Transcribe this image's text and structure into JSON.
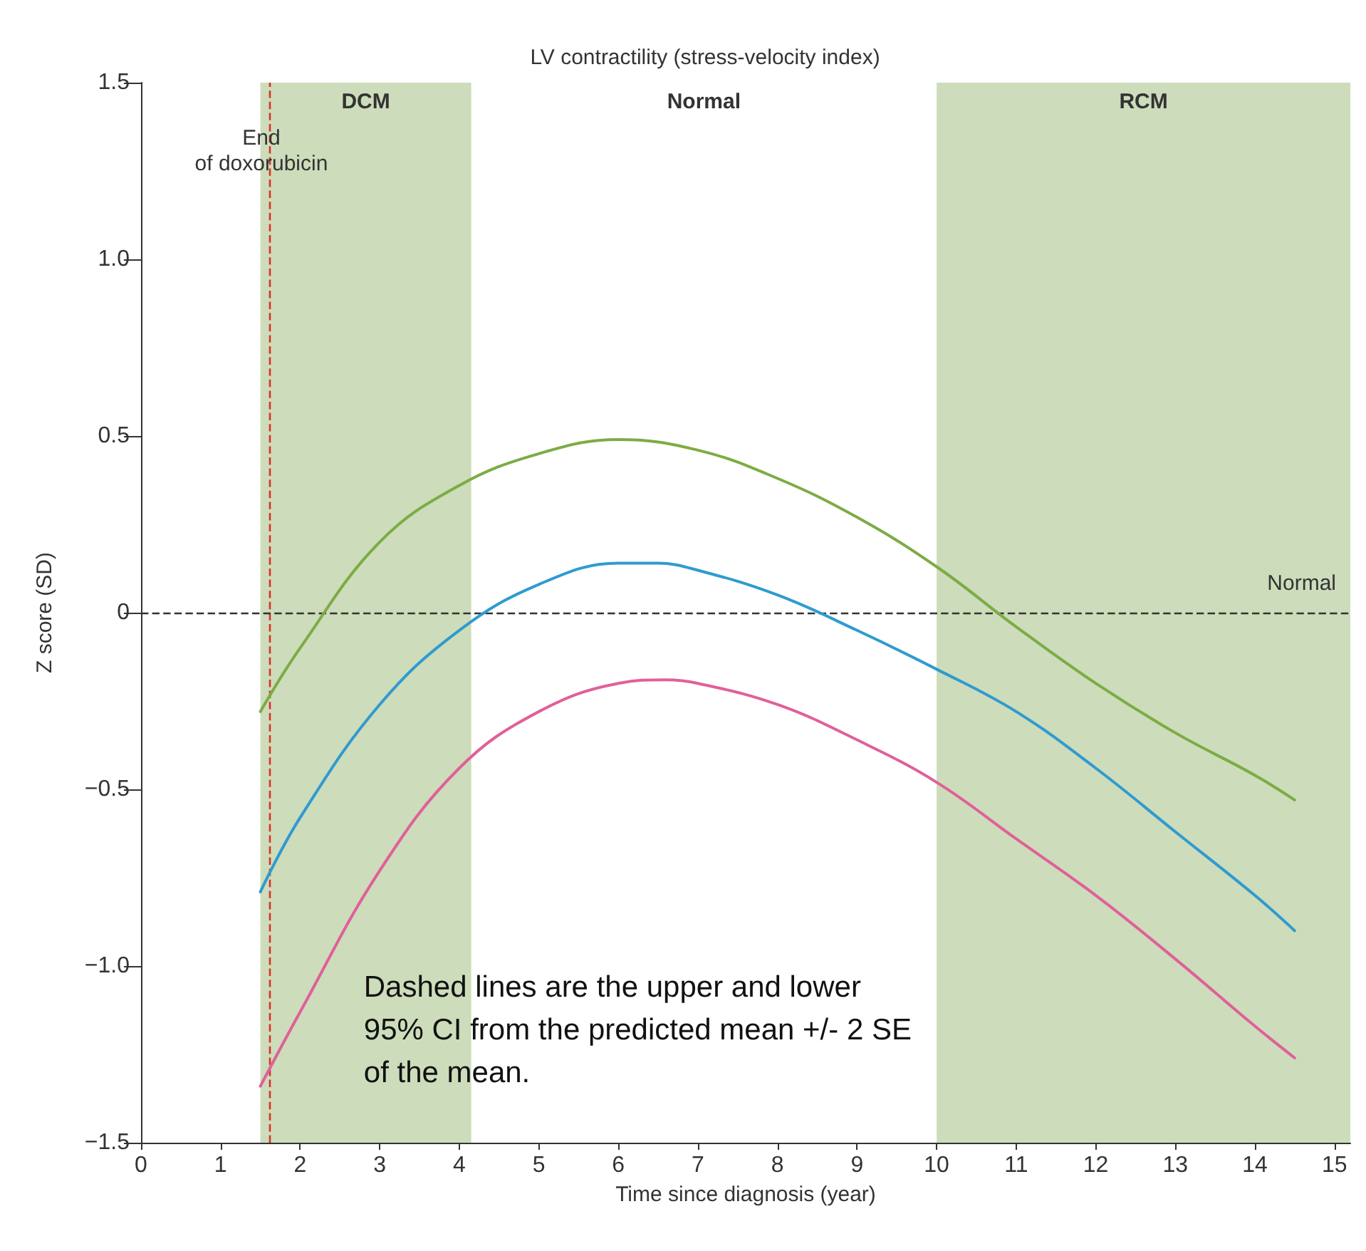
{
  "chart_data": {
    "type": "line",
    "title": "LV contractility (stress-velocity index)",
    "xlabel": "Time since diagnosis (year)",
    "ylabel": "Z score (SD)",
    "series": [
      {
        "color": "#7cac45",
        "x": [
          1.5,
          2,
          3,
          4,
          5,
          6,
          7,
          8,
          9,
          10,
          11,
          12,
          13,
          14,
          14.5
        ],
        "values": [
          -0.28,
          -0.1,
          0.2,
          0.36,
          0.45,
          0.49,
          0.46,
          0.38,
          0.27,
          0.13,
          -0.04,
          -0.2,
          -0.34,
          -0.46,
          -0.53
        ]
      },
      {
        "color": "#2f9bd0",
        "x": [
          1.5,
          2,
          3,
          4,
          5,
          6,
          6.5,
          7,
          8,
          9,
          10,
          11,
          12,
          13,
          14,
          14.5
        ],
        "values": [
          -0.79,
          -0.58,
          -0.26,
          -0.05,
          0.08,
          0.14,
          0.14,
          0.12,
          0.05,
          -0.05,
          -0.16,
          -0.28,
          -0.44,
          -0.62,
          -0.8,
          -0.9
        ]
      },
      {
        "color": "#e0609a",
        "x": [
          1.5,
          2,
          3,
          4,
          5,
          6,
          6.6,
          7,
          8,
          9,
          10,
          11,
          12,
          13,
          14,
          14.5
        ],
        "values": [
          -1.34,
          -1.13,
          -0.73,
          -0.44,
          -0.28,
          -0.2,
          -0.19,
          -0.2,
          -0.26,
          -0.36,
          -0.48,
          -0.64,
          -0.8,
          -0.98,
          -1.17,
          -1.26
        ]
      }
    ],
    "xlim": [
      0,
      15.2
    ],
    "xticks": [
      0,
      1,
      2,
      3,
      4,
      5,
      6,
      7,
      8,
      9,
      10,
      11,
      12,
      13,
      14,
      15
    ],
    "ylim": [
      -1.5,
      1.5
    ],
    "yticks": [
      {
        "value": -1.5,
        "label": "−1.5"
      },
      {
        "value": -1,
        "label": "−1.0"
      },
      {
        "value": -0.5,
        "label": "−0.5"
      },
      0,
      0.5,
      {
        "value": 1,
        "label": "1.0"
      },
      1.5
    ],
    "bands": [
      {
        "axis": "x",
        "from": 1.5,
        "to": 4.15,
        "label": "DCM",
        "color": "#cddcba"
      },
      {
        "axis": "x",
        "from": 10,
        "to": 15.2,
        "label": "RCM",
        "color": "#cddcba"
      }
    ],
    "ref_lines": [
      {
        "axis": "x",
        "value": 1.62,
        "label": "End\nof doxorubicin",
        "color": "#d9302a",
        "line_style": "dashed"
      },
      {
        "axis": "y",
        "value": 0,
        "label": "Normal",
        "color": "#333333",
        "line_style": "dashed"
      }
    ],
    "annotations": [
      "Normal",
      "Dashed lines are the upper and lower\n95% CI from the predicted mean +/- 2 SE\nof the mean."
    ],
    "grid": false,
    "marker": "none",
    "line_style": "solid"
  }
}
